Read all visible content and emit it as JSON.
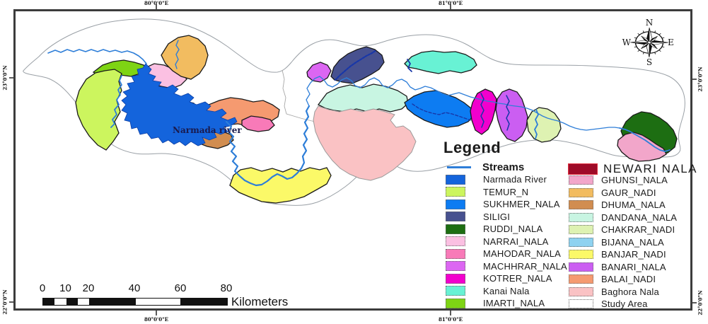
{
  "map_title_label": {
    "narmada_river": "Narmada river"
  },
  "frame": {
    "top_coords": [
      "80°0'0\"E",
      "81°0'0\"E"
    ],
    "bottom_coords": [
      "80°0'0\"E",
      "81°0'0\"E"
    ],
    "left_coords": [
      "23°0'0\"N",
      "22°0'0\"N"
    ],
    "right_coords": [
      "23°0'0\"N",
      "22°0'0\"N"
    ]
  },
  "compass": {
    "n": "N",
    "e": "E",
    "s": "S",
    "w": "W"
  },
  "colors": {
    "streams": "#2e7ed8",
    "stream_dark": "#1837a8",
    "narmada_river": "#1464dc",
    "temur_n": "#ccf55e",
    "sukhmer_nala": "#0d7cf2",
    "siligi": "#47518f",
    "ruddi_nala": "#1d6e12",
    "narrai_nala": "#fbc0e2",
    "mahodar_nala": "#f87ab8",
    "machhrar_nala": "#dc66f2",
    "kotrer_nala": "#f200cd",
    "kanai_nala": "#68f2d4",
    "imarti_nala": "#7ed414",
    "newari_nala": "#9e0b28",
    "ghunsi_nala": "#f2a6ca",
    "gaur_nadi": "#f2bc60",
    "dhuma_nala": "#d18d50",
    "dandana_nala": "#c8f5e2",
    "chakrar_nadi": "#def2b2",
    "bijana_nala": "#8ed2f0",
    "banjar_nadi": "#fbf968",
    "banari_nala": "#cb5ef2",
    "balai_nadi": "#f59a70",
    "baghora_nala": "#fac2c4",
    "study_area": "#ffffff"
  },
  "legend": {
    "title": "Legend",
    "streams_label": "Streams",
    "left_items": [
      {
        "key": "narmada_river",
        "label": "Narmada River"
      },
      {
        "key": "temur_n",
        "label": "TEMUR_N"
      },
      {
        "key": "sukhmer_nala",
        "label": "SUKHMER_NALA"
      },
      {
        "key": "siligi",
        "label": "SILIGI"
      },
      {
        "key": "ruddi_nala",
        "label": "RUDDI_NALA"
      },
      {
        "key": "narrai_nala",
        "label": "NARRAI_NALA"
      },
      {
        "key": "mahodar_nala",
        "label": "MAHODAR_NALA"
      },
      {
        "key": "machhrar_nala",
        "label": "MACHHRAR_NALA"
      },
      {
        "key": "kotrer_nala",
        "label": "KOTRER_NALA"
      },
      {
        "key": "kanai_nala",
        "label": "Kanai Nala"
      },
      {
        "key": "imarti_nala",
        "label": "IMARTI_NALA"
      }
    ],
    "newari": {
      "key": "newari_nala",
      "label": "NEWARI NALA"
    },
    "right_items": [
      {
        "key": "ghunsi_nala",
        "label": "GHUNSI_NALA"
      },
      {
        "key": "gaur_nadi",
        "label": "GAUR_NADI"
      },
      {
        "key": "dhuma_nala",
        "label": "DHUMA_NALA"
      },
      {
        "key": "dandana_nala",
        "label": "DANDANA_NALA"
      },
      {
        "key": "chakrar_nadi",
        "label": "CHAKRAR_NADI"
      },
      {
        "key": "bijana_nala",
        "label": "BIJANA_NALA"
      },
      {
        "key": "banjar_nadi",
        "label": "BANJAR_NADI"
      },
      {
        "key": "banari_nala",
        "label": "BANARI_NALA"
      },
      {
        "key": "balai_nadi",
        "label": "BALAI_NADI"
      },
      {
        "key": "baghora_nala",
        "label": "Baghora Nala"
      },
      {
        "key": "study_area",
        "label": "Study Area"
      }
    ]
  },
  "scalebar": {
    "ticks": [
      "0",
      "10",
      "20",
      "40",
      "60",
      "80"
    ],
    "unit": "Kilometers"
  }
}
